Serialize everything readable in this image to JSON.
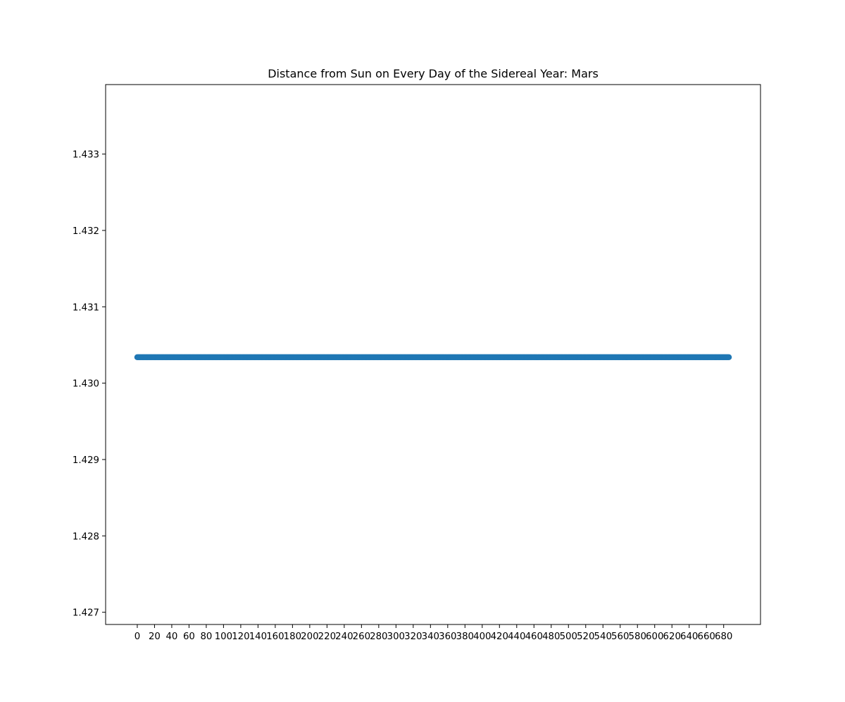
{
  "chart_data": {
    "type": "scatter",
    "title": "Distance from Sun on Every Day of the Sidereal Year: Mars",
    "xlabel": "",
    "ylabel": "",
    "x_range": [
      0,
      686
    ],
    "x_step": 1,
    "y_constant": 1.43034,
    "xlim": [
      -36.7,
      722.7
    ],
    "ylim": [
      1.42684,
      1.43391
    ],
    "xticks": [
      0,
      20,
      40,
      60,
      80,
      100,
      120,
      140,
      160,
      180,
      200,
      220,
      240,
      260,
      280,
      300,
      320,
      340,
      360,
      380,
      400,
      420,
      440,
      460,
      480,
      500,
      520,
      540,
      560,
      580,
      600,
      620,
      640,
      660,
      680
    ],
    "xtick_labels": [
      "0",
      "20",
      "40",
      "60",
      "80",
      "100",
      "120",
      "140",
      "160",
      "180",
      "200",
      "220",
      "240",
      "260",
      "280",
      "300",
      "320",
      "340",
      "360",
      "380",
      "400",
      "420",
      "440",
      "460",
      "480",
      "500",
      "520",
      "540",
      "560",
      "580",
      "600",
      "620",
      "640",
      "660",
      "680"
    ],
    "yticks": [
      1.427,
      1.428,
      1.429,
      1.43,
      1.431,
      1.432,
      1.433
    ],
    "ytick_labels": [
      "1.427",
      "1.428",
      "1.429",
      "1.430",
      "1.431",
      "1.432",
      "1.433"
    ],
    "grid": false,
    "legend": "none",
    "colors": {
      "marker": "#1f77b4",
      "axes": "#000000",
      "background": "#ffffff"
    }
  }
}
